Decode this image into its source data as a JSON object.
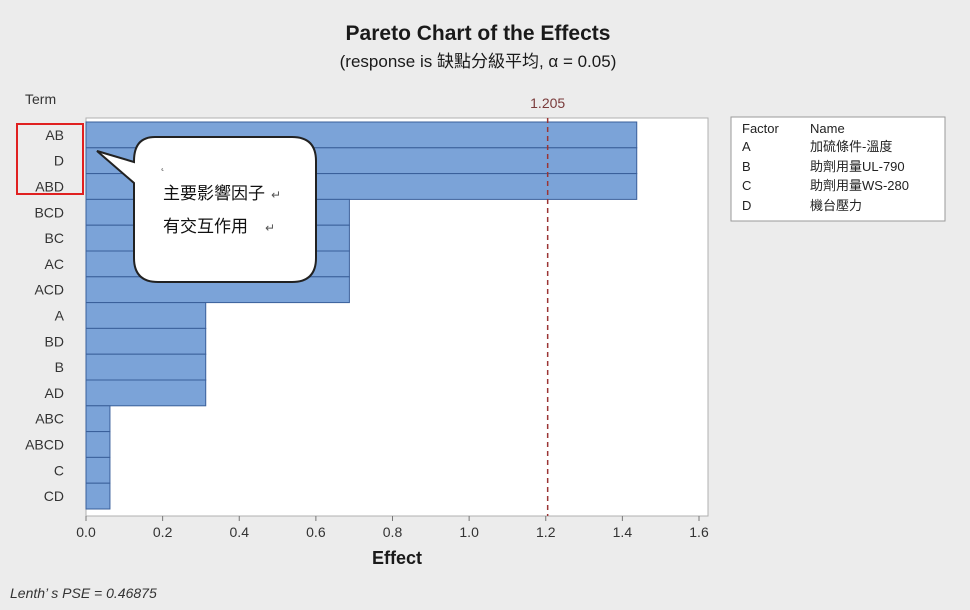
{
  "chart_data": {
    "type": "bar",
    "orientation": "horizontal",
    "title": "Pareto Chart of the Effects",
    "subtitle": "(response is 缺點分級平均, α = 0.05)",
    "ylabel": "Term",
    "xlabel": "Effect",
    "categories": [
      "AB",
      "D",
      "ABD",
      "BCD",
      "BC",
      "AC",
      "ACD",
      "A",
      "BD",
      "B",
      "AD",
      "ABC",
      "ABCD",
      "C",
      "CD"
    ],
    "values": [
      1.4375,
      1.4375,
      1.4375,
      0.6875,
      0.6875,
      0.6875,
      0.6875,
      0.3125,
      0.3125,
      0.3125,
      0.3125,
      0.0625,
      0.0625,
      0.0625,
      0.0625
    ],
    "xlim": [
      0.0,
      1.6
    ],
    "xticks": [
      0.0,
      0.2,
      0.4,
      0.6,
      0.8,
      1.0,
      1.2,
      1.4,
      1.6
    ],
    "xtick_labels": [
      "0.0",
      "0.2",
      "0.4",
      "0.6",
      "0.8",
      "1.0",
      "1.2",
      "1.4",
      "1.6"
    ],
    "reference_line": {
      "value": 1.205,
      "label": "1.205"
    },
    "grid": false,
    "legend_placement": "right",
    "bar_color": "#7ba3d8",
    "bar_edge_color": "#3a5f9a",
    "ref_line_color": "#9b3434",
    "highlight_terms": [
      "AB",
      "D",
      "ABD"
    ],
    "highlight_color": "#e02020"
  },
  "legend": {
    "header_factor": "Factor",
    "header_name": "Name",
    "rows": [
      {
        "factor": "A",
        "name": "加硫條件-溫度"
      },
      {
        "factor": "B",
        "name": "助劑用量UL-790"
      },
      {
        "factor": "C",
        "name": "助劑用量WS-280"
      },
      {
        "factor": "D",
        "name": "機台壓力"
      }
    ]
  },
  "callout": {
    "marker": "˛",
    "line1": "主要影響因子",
    "line2": "有交互作用",
    "return_mark": "↵"
  },
  "footnote": "Lenth’ s PSE = 0.46875"
}
